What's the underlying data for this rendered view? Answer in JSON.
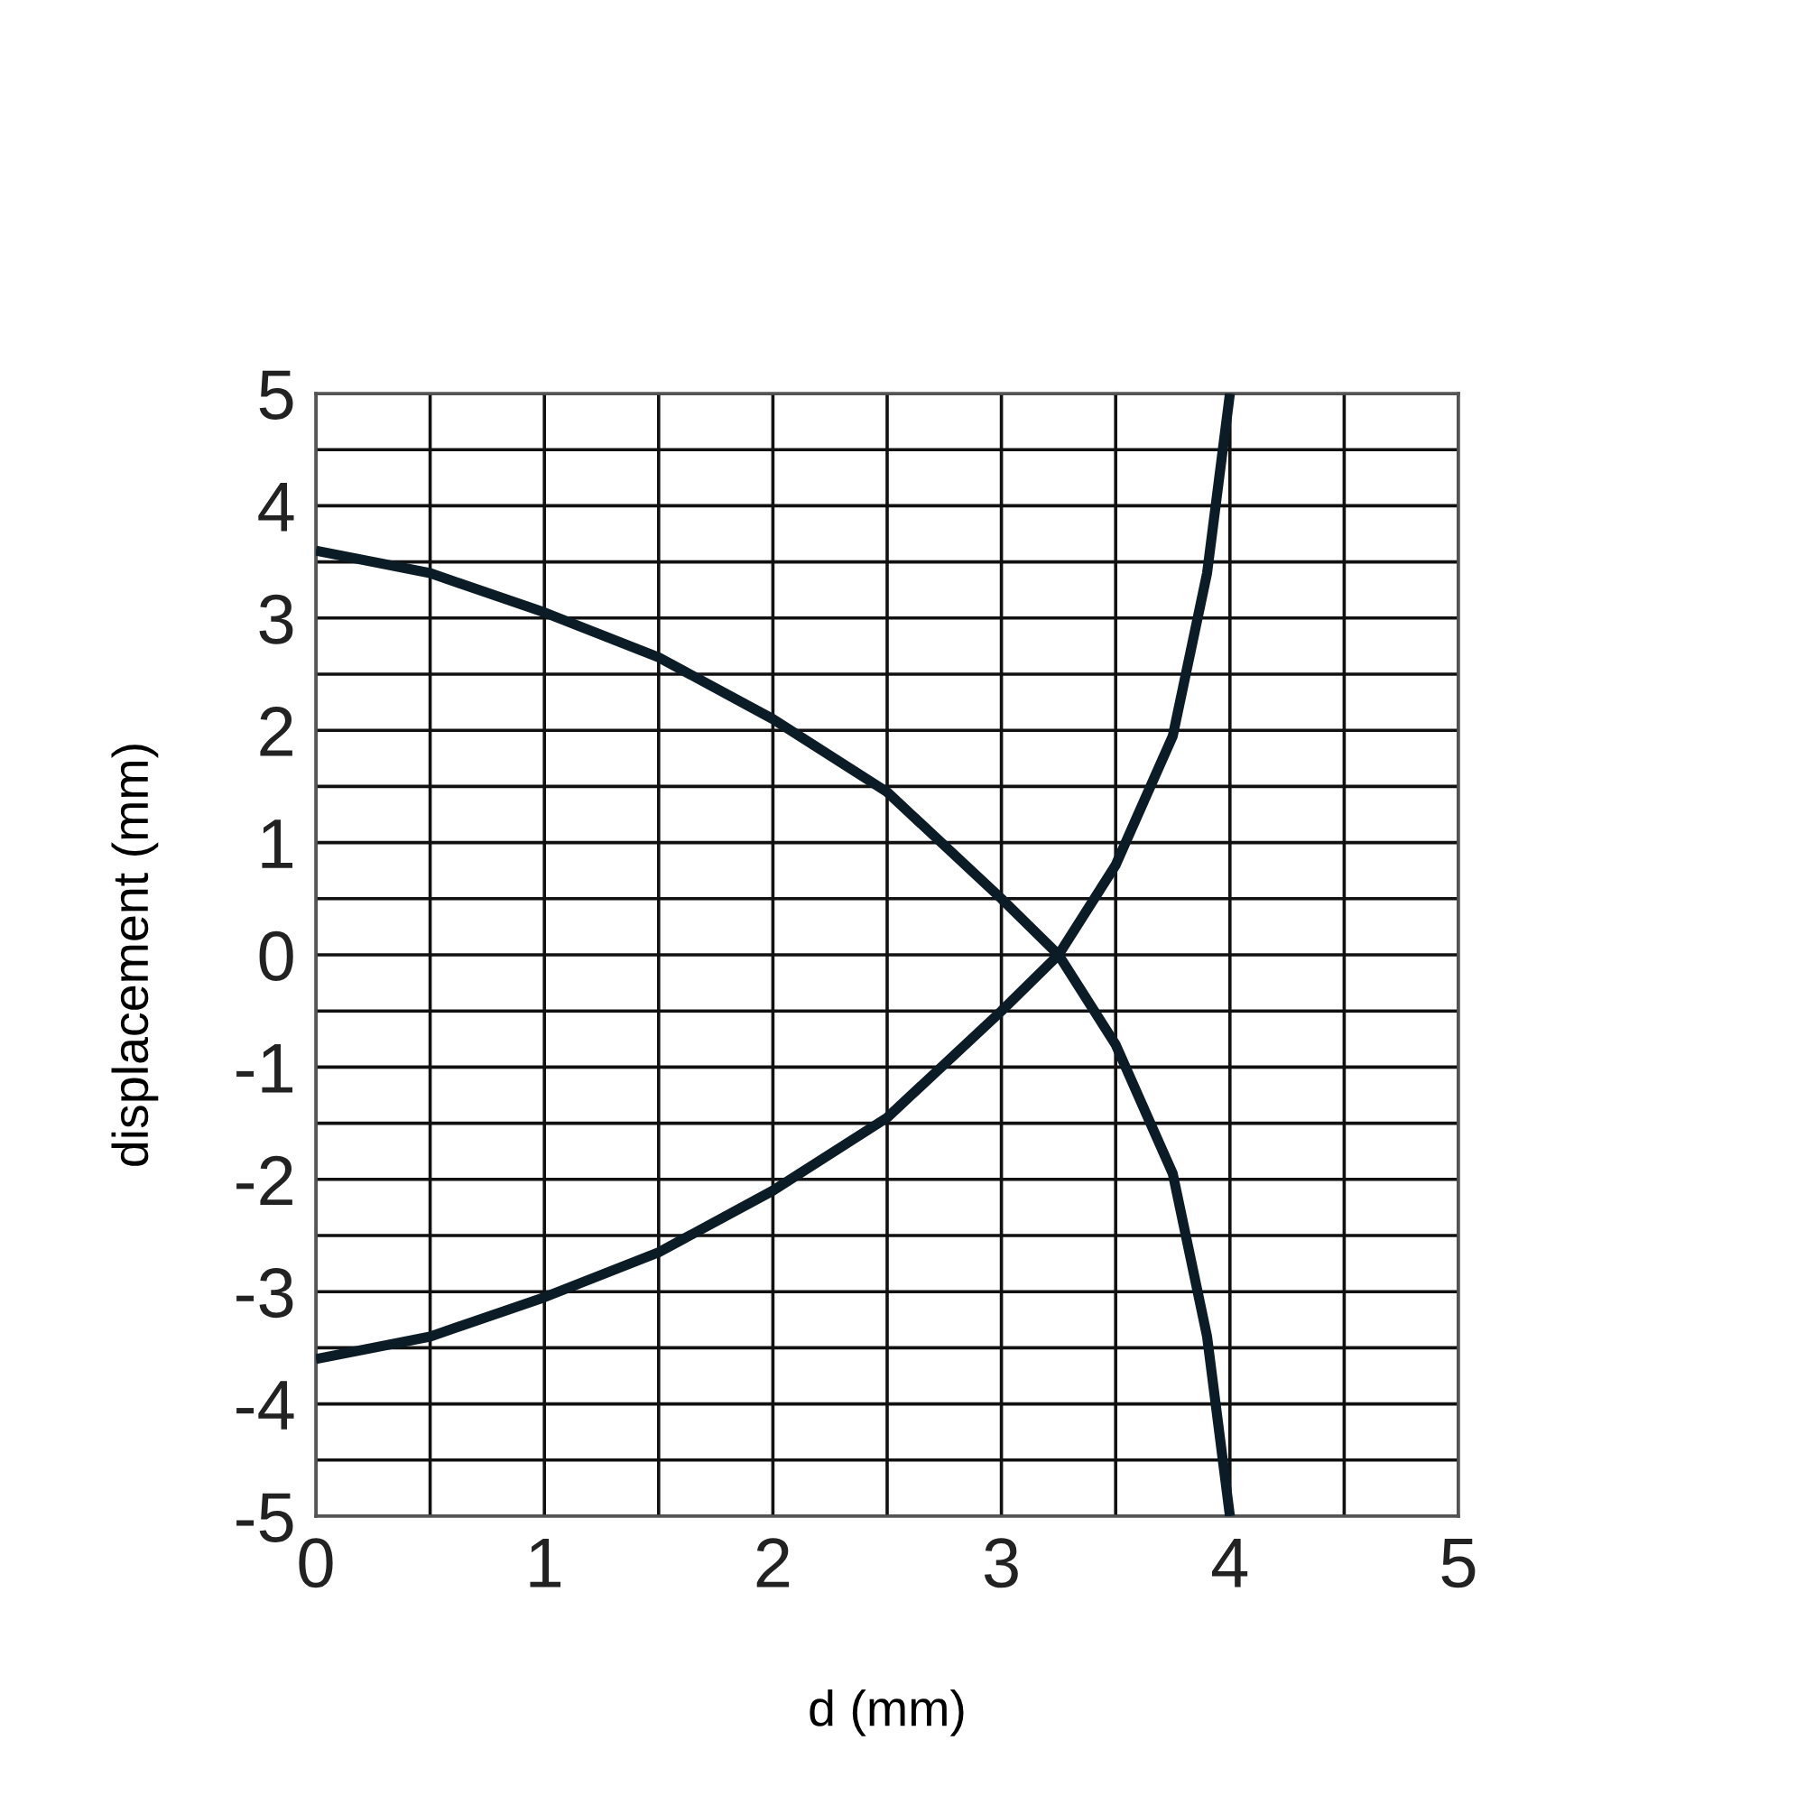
{
  "chart_data": {
    "type": "line",
    "xlabel": "d (mm)",
    "ylabel": "displacement (mm)",
    "series": [
      {
        "color": "#0b1c26",
        "x": [
          0,
          0.5,
          1,
          1.5,
          2,
          2.5,
          3,
          3.25,
          3.5,
          3.75,
          3.9,
          3.95,
          4.0
        ],
        "values": [
          3.6,
          3.4,
          3.05,
          2.65,
          2.1,
          1.45,
          0.5,
          0,
          -0.8,
          -1.95,
          -3.4,
          -4.2,
          -5
        ]
      },
      {
        "color": "#0b1c26",
        "x": [
          0,
          0.5,
          1,
          1.5,
          2,
          2.5,
          3,
          3.25,
          3.5,
          3.75,
          3.9,
          3.95,
          4.0
        ],
        "values": [
          -3.6,
          -3.4,
          -3.05,
          -2.65,
          -2.1,
          -1.45,
          -0.5,
          0,
          0.8,
          1.95,
          3.4,
          4.2,
          5
        ]
      }
    ],
    "xlim": [
      0,
      5
    ],
    "ylim": [
      -5,
      5
    ],
    "xticks": [
      0,
      {
        "value": 0.5,
        "label": null
      },
      1,
      {
        "value": 1.5,
        "label": null
      },
      2,
      {
        "value": 2.5,
        "label": null
      },
      3,
      {
        "value": 3.5,
        "label": null
      },
      4,
      {
        "value": 4.5,
        "label": null
      },
      5
    ],
    "yticks": [
      -5,
      {
        "value": -4.5,
        "label": null
      },
      -4,
      {
        "value": -3.5,
        "label": null
      },
      -3,
      {
        "value": -2.5,
        "label": null
      },
      -2,
      {
        "value": -1.5,
        "label": null
      },
      -1,
      {
        "value": -0.5,
        "label": null
      },
      0,
      {
        "value": 0.5,
        "label": null
      },
      1,
      {
        "value": 1.5,
        "label": null
      },
      2,
      {
        "value": 2.5,
        "label": null
      },
      3,
      {
        "value": 3.5,
        "label": null
      },
      4,
      {
        "value": 4.5,
        "label": null
      },
      5
    ],
    "grid": true,
    "marker": "none",
    "line_style": "solid"
  }
}
